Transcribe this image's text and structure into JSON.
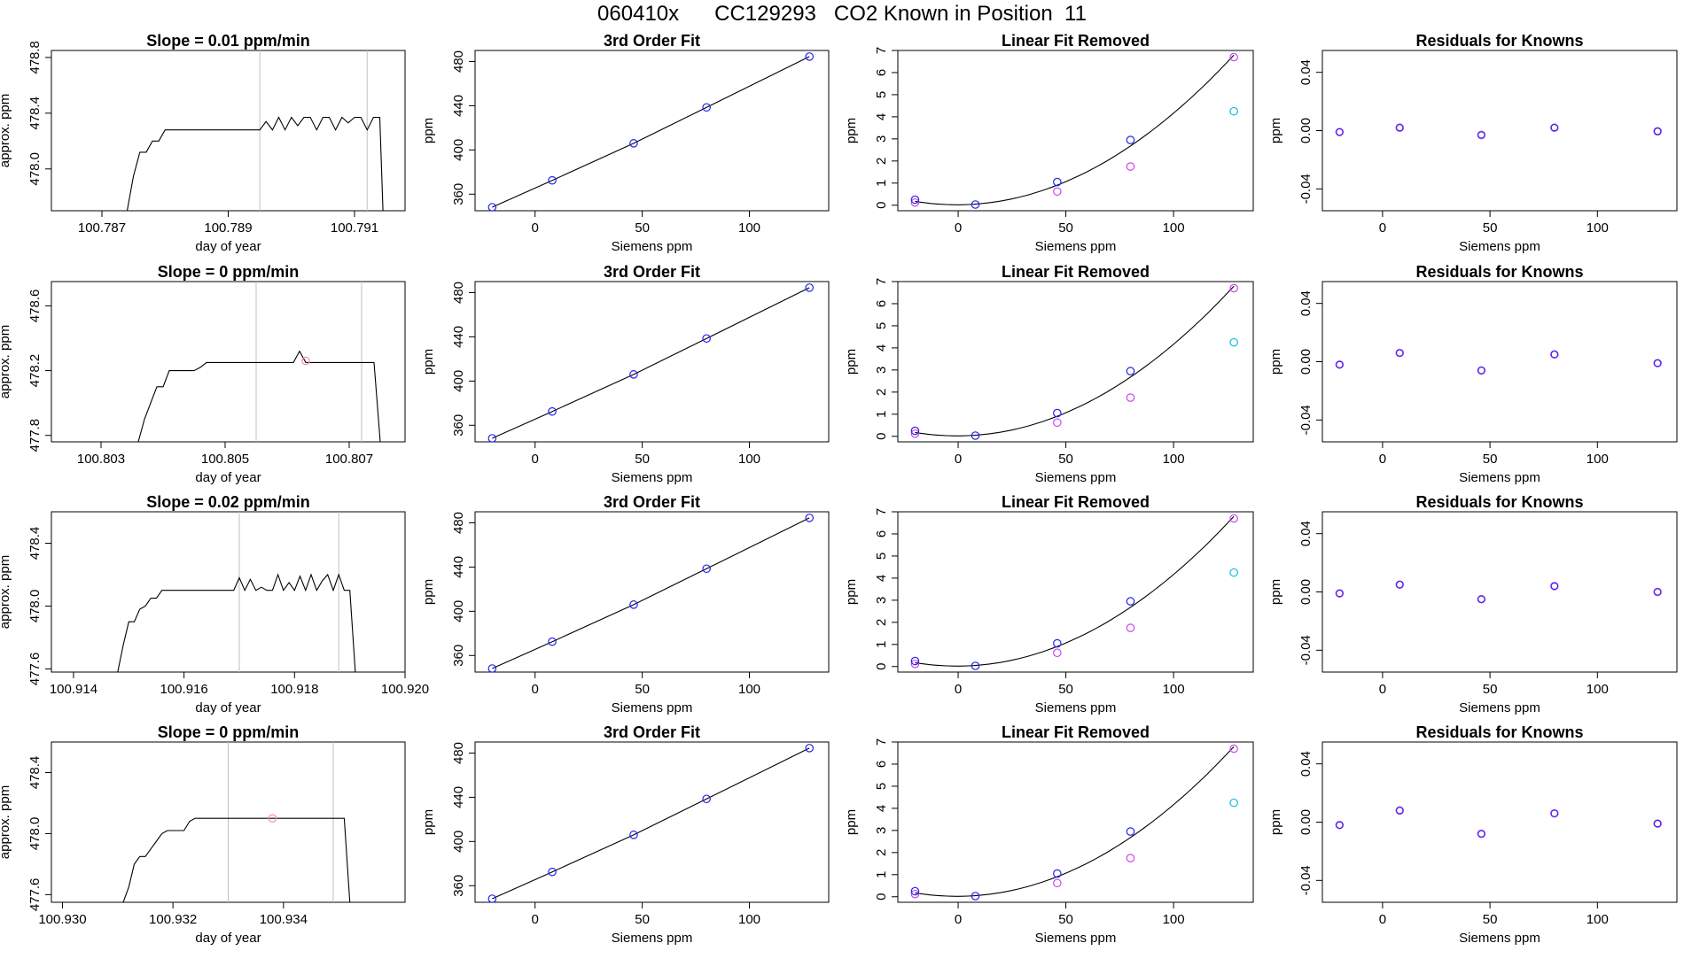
{
  "title": "060410x      CC129293   CO2 Known in Position  11",
  "colors": {
    "line": "#000000",
    "fit_points": "#2222ee",
    "residual_points": "#7711cc",
    "magenta_points": "#cc44ee",
    "cyan_points": "#11bbdd",
    "pink_points": "#ff88aa",
    "window_lines": "#c0c0c0"
  },
  "chart_data": [
    {
      "type": "line",
      "row": 0,
      "title": "Slope =  0.01  ppm/min",
      "xlabel": "day of year",
      "ylabel": "approx. ppm",
      "xlim": [
        100.7862,
        100.7918
      ],
      "ylim": [
        477.7,
        478.85
      ],
      "xticks": [
        100.787,
        100.789,
        100.791
      ],
      "xtick_labels": [
        "100.787",
        "100.789",
        "100.791"
      ],
      "yticks": [
        478.0,
        478.4,
        478.8
      ],
      "ytick_labels": [
        "478.0",
        "478.4",
        "478.8"
      ],
      "vlines": [
        100.7895,
        100.7912
      ],
      "points": [],
      "series": [
        {
          "x": [
            100.7874,
            100.7875,
            100.7876,
            100.7877,
            100.7878,
            100.7879,
            100.788,
            100.7881,
            100.7895,
            100.7896,
            100.7897,
            100.7898,
            100.7899,
            100.79,
            100.7901,
            100.7902,
            100.7903,
            100.7904,
            100.7905,
            100.7906,
            100.7907,
            100.7908,
            100.7909,
            100.791,
            100.7911,
            100.7912,
            100.7913,
            100.7914,
            100.79145
          ],
          "y": [
            477.7,
            477.95,
            478.12,
            478.12,
            478.2,
            478.2,
            478.28,
            478.28,
            478.28,
            478.34,
            478.28,
            478.37,
            478.28,
            478.37,
            478.31,
            478.37,
            478.37,
            478.28,
            478.37,
            478.37,
            478.28,
            478.37,
            478.33,
            478.37,
            478.37,
            478.28,
            478.37,
            478.37,
            477.7
          ]
        }
      ]
    },
    {
      "type": "line",
      "row": 1,
      "title": "Slope =  0  ppm/min",
      "xlabel": "day of year",
      "ylabel": "approx. ppm",
      "xlim": [
        100.8022,
        100.8079
      ],
      "ylim": [
        477.76,
        478.75
      ],
      "xticks": [
        100.803,
        100.805,
        100.807
      ],
      "xtick_labels": [
        "100.803",
        "100.805",
        "100.807"
      ],
      "yticks": [
        477.8,
        478.2,
        478.6
      ],
      "ytick_labels": [
        "477.8",
        "478.2",
        "478.6"
      ],
      "vlines": [
        100.8055,
        100.8072
      ],
      "points": [
        {
          "x": 100.8063,
          "y": 478.26,
          "color": "pink"
        }
      ],
      "series": [
        {
          "x": [
            100.8036,
            100.8037,
            100.8038,
            100.8039,
            100.804,
            100.8041,
            100.8042,
            100.8043,
            100.8044,
            100.8045,
            100.8046,
            100.8047,
            100.8061,
            100.8062,
            100.8063,
            100.8074,
            100.8075
          ],
          "y": [
            477.76,
            477.9,
            478.0,
            478.1,
            478.1,
            478.2,
            478.2,
            478.2,
            478.2,
            478.2,
            478.22,
            478.25,
            478.25,
            478.32,
            478.25,
            478.25,
            477.76
          ]
        }
      ]
    },
    {
      "type": "line",
      "row": 2,
      "title": "Slope =  0.02  ppm/min",
      "xlabel": "day of year",
      "ylabel": "approx. ppm",
      "xlim": [
        100.9136,
        100.92
      ],
      "ylim": [
        477.58,
        478.6
      ],
      "xticks": [
        100.914,
        100.916,
        100.918,
        100.92
      ],
      "xtick_labels": [
        "100.914",
        "100.916",
        "100.918",
        "100.920"
      ],
      "yticks": [
        477.6,
        478.0,
        478.4
      ],
      "ytick_labels": [
        "477.6",
        "478.0",
        "478.4"
      ],
      "vlines": [
        100.917,
        100.9188
      ],
      "points": [],
      "series": [
        {
          "x": [
            100.9148,
            100.9149,
            100.915,
            100.9151,
            100.9152,
            100.9153,
            100.9154,
            100.9155,
            100.9156,
            100.9169,
            100.917,
            100.9171,
            100.9172,
            100.9173,
            100.9174,
            100.9175,
            100.9176,
            100.9177,
            100.9178,
            100.9179,
            100.918,
            100.9181,
            100.9182,
            100.9183,
            100.9184,
            100.9185,
            100.9186,
            100.9187,
            100.9188,
            100.9189,
            100.919,
            100.9191
          ],
          "y": [
            477.58,
            477.75,
            477.9,
            477.9,
            477.98,
            478.0,
            478.05,
            478.05,
            478.1,
            478.1,
            478.18,
            478.1,
            478.17,
            478.1,
            478.12,
            478.1,
            478.1,
            478.2,
            478.1,
            478.15,
            478.1,
            478.19,
            478.1,
            478.2,
            478.1,
            478.16,
            478.2,
            478.1,
            478.2,
            478.1,
            478.1,
            477.58
          ]
        }
      ]
    },
    {
      "type": "line",
      "row": 3,
      "title": "Slope =  0  ppm/min",
      "xlabel": "day of year",
      "ylabel": "approx. ppm",
      "xlim": [
        100.9298,
        100.9362
      ],
      "ylim": [
        477.55,
        478.6
      ],
      "xticks": [
        100.93,
        100.932,
        100.934
      ],
      "xtick_labels": [
        "100.930",
        "100.932",
        "100.934"
      ],
      "yticks": [
        477.6,
        478.0,
        478.4
      ],
      "ytick_labels": [
        "477.6",
        "478.0",
        "478.4"
      ],
      "vlines": [
        100.933,
        100.9349
      ],
      "points": [
        {
          "x": 100.9338,
          "y": 478.1,
          "color": "pink"
        }
      ],
      "series": [
        {
          "x": [
            100.9311,
            100.9312,
            100.9313,
            100.9314,
            100.9315,
            100.9316,
            100.9317,
            100.9318,
            100.9319,
            100.932,
            100.9321,
            100.9322,
            100.9323,
            100.9324,
            100.9351,
            100.9352
          ],
          "y": [
            477.55,
            477.65,
            477.8,
            477.85,
            477.85,
            477.9,
            477.95,
            478.0,
            478.02,
            478.02,
            478.02,
            478.02,
            478.08,
            478.1,
            478.1,
            477.55
          ]
        }
      ]
    },
    {
      "type": "scatter",
      "subtype": "fit",
      "rows": [
        0,
        1,
        2,
        3
      ],
      "title": "3rd Order Fit",
      "xlabel": "Siemens ppm",
      "ylabel": "ppm",
      "xlim": [
        -28,
        137
      ],
      "ylim": [
        345,
        490
      ],
      "xticks": [
        0,
        50,
        100
      ],
      "xtick_labels": [
        "0",
        "50",
        "100"
      ],
      "yticks": [
        360,
        400,
        440,
        480
      ],
      "ytick_labels": [
        "360",
        "400",
        "440",
        "480"
      ],
      "points": [
        {
          "x": -20,
          "y": 348.2
        },
        {
          "x": 8,
          "y": 372.5
        },
        {
          "x": 46,
          "y": 406.0
        },
        {
          "x": 80,
          "y": 438.5
        },
        {
          "x": 128,
          "y": 484.5
        }
      ]
    },
    {
      "type": "scatter",
      "subtype": "linear_removed",
      "rows": [
        0,
        1,
        2,
        3
      ],
      "title": "Linear Fit Removed",
      "xlabel": "Siemens ppm",
      "ylabel": "ppm",
      "xlim": [
        -28,
        137
      ],
      "ylim": [
        -0.25,
        7.0
      ],
      "xticks": [
        0,
        50,
        100
      ],
      "xtick_labels": [
        "0",
        "50",
        "100"
      ],
      "yticks": [
        0,
        1,
        2,
        3,
        4,
        5,
        6,
        7
      ],
      "ytick_labels": [
        "0",
        "1",
        "2",
        "3",
        "4",
        "5",
        "6",
        "7"
      ],
      "curve_coefficients": [
        0.02,
        0.000434,
        0.00041
      ],
      "curve_x_range": [
        -20,
        128
      ],
      "points_blue": [
        {
          "x": -20,
          "y": 0.25
        },
        {
          "x": 8,
          "y": 0.03
        },
        {
          "x": 46,
          "y": 1.05
        },
        {
          "x": 80,
          "y": 2.95
        }
      ],
      "points_magenta": [
        {
          "x": -20,
          "y": 0.12
        },
        {
          "x": 46,
          "y": 0.62
        },
        {
          "x": 80,
          "y": 1.75
        },
        {
          "x": 128,
          "y": 6.7
        }
      ],
      "points_cyan": [
        {
          "x": 128,
          "y": 4.25
        }
      ]
    },
    {
      "type": "scatter",
      "subtype": "residuals",
      "rows": [
        0,
        1,
        2,
        3
      ],
      "title": "Residuals for Knowns",
      "xlabel": "Siemens ppm",
      "ylabel": "ppm",
      "xlim": [
        -28,
        137
      ],
      "ylim": [
        -0.055,
        0.055
      ],
      "xticks": [
        0,
        50,
        100
      ],
      "xtick_labels": [
        "0",
        "50",
        "100"
      ],
      "yticks": [
        -0.04,
        0.0,
        0.04
      ],
      "ytick_labels": [
        "-0.04",
        "0.00",
        "0.04"
      ],
      "residuals": [
        [
          {
            "x": -20,
            "y": -0.001
          },
          {
            "x": 8,
            "y": 0.002
          },
          {
            "x": 46,
            "y": -0.003
          },
          {
            "x": 80,
            "y": 0.002
          },
          {
            "x": 128,
            "y": -0.0005
          }
        ],
        [
          {
            "x": -20,
            "y": -0.002
          },
          {
            "x": 8,
            "y": 0.006
          },
          {
            "x": 46,
            "y": -0.006
          },
          {
            "x": 80,
            "y": 0.005
          },
          {
            "x": 128,
            "y": -0.001
          }
        ],
        [
          {
            "x": -20,
            "y": -0.001
          },
          {
            "x": 8,
            "y": 0.005
          },
          {
            "x": 46,
            "y": -0.005
          },
          {
            "x": 80,
            "y": 0.004
          },
          {
            "x": 128,
            "y": 0.0
          }
        ],
        [
          {
            "x": -20,
            "y": -0.002
          },
          {
            "x": 8,
            "y": 0.008
          },
          {
            "x": 46,
            "y": -0.008
          },
          {
            "x": 80,
            "y": 0.006
          },
          {
            "x": 128,
            "y": -0.001
          }
        ]
      ]
    }
  ]
}
